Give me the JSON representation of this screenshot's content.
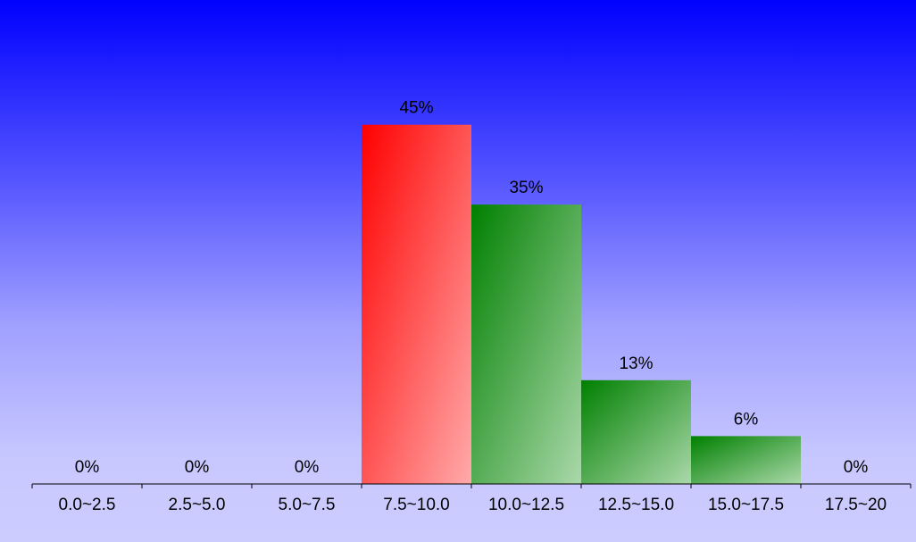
{
  "chart_data": {
    "type": "bar",
    "categories": [
      "0.0~2.5",
      "2.5~5.0",
      "5.0~7.5",
      "7.5~10.0",
      "10.0~12.5",
      "12.5~15.0",
      "15.0~17.5",
      "17.5~20"
    ],
    "values": [
      0,
      0,
      0,
      45,
      35,
      13,
      6,
      0
    ],
    "value_labels": [
      "0%",
      "0%",
      "0%",
      "45%",
      "35%",
      "13%",
      "6%",
      "0%"
    ],
    "unit": "%",
    "ylim": [
      0,
      50
    ],
    "grid": false,
    "legend": "none",
    "title": "",
    "xlabel": "",
    "ylabel": ""
  },
  "colors": {
    "background_top": "#0000ff",
    "background_bottom": "#ccccff",
    "highlight_bar_start": "#ff0000",
    "highlight_bar_end": "#ffaaaa",
    "bar_start": "#008000",
    "bar_end": "#aad8aa",
    "text": "#000000",
    "axis": "#000000"
  }
}
